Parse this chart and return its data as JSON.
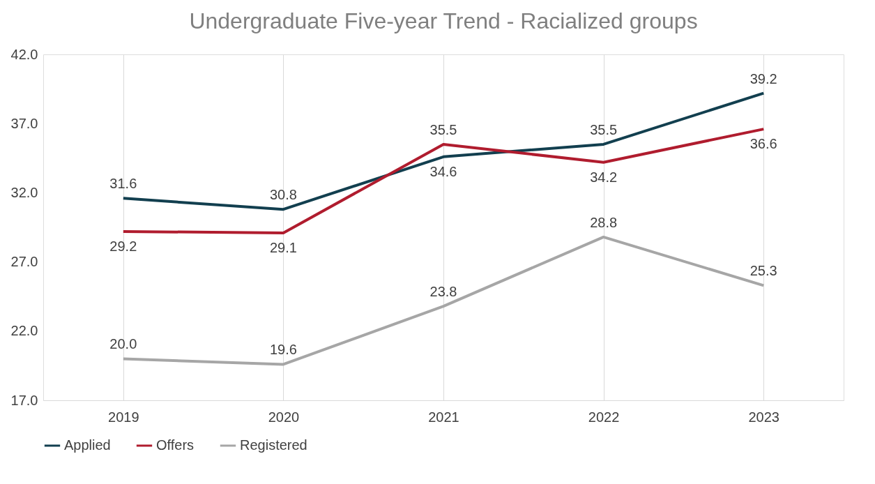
{
  "chart_data": {
    "type": "line",
    "title": "Undergraduate Five-year Trend - Racialized groups",
    "categories": [
      "2019",
      "2020",
      "2021",
      "2022",
      "2023"
    ],
    "series": [
      {
        "name": "Applied",
        "color": "#123f4f",
        "values": [
          31.6,
          30.8,
          34.6,
          35.5,
          39.2
        ],
        "value_labels": [
          "31.6",
          "30.8",
          "34.6",
          "35.5",
          "39.2"
        ]
      },
      {
        "name": "Offers",
        "color": "#b01c2e",
        "values": [
          29.2,
          29.1,
          35.5,
          34.2,
          36.6
        ],
        "value_labels": [
          "29.2",
          "29.1",
          "35.5",
          "34.2",
          "36.6"
        ]
      },
      {
        "name": "Registered",
        "color": "#a6a6a6",
        "values": [
          20.0,
          19.6,
          23.8,
          28.8,
          25.3
        ],
        "value_labels": [
          "20.0",
          "19.6",
          "23.8",
          "28.8",
          "25.3"
        ]
      }
    ],
    "ylim": [
      17,
      42
    ],
    "yticks": [
      {
        "value": 17,
        "label": "17.0"
      },
      {
        "value": 22,
        "label": "22.0"
      },
      {
        "value": 27,
        "label": "27.0"
      },
      {
        "value": 32,
        "label": "32.0"
      },
      {
        "value": 37,
        "label": "37.0"
      },
      {
        "value": 42,
        "label": "42.0"
      }
    ],
    "grid": "x",
    "legend": "bottom",
    "marker": "none",
    "line_style": "solid"
  }
}
